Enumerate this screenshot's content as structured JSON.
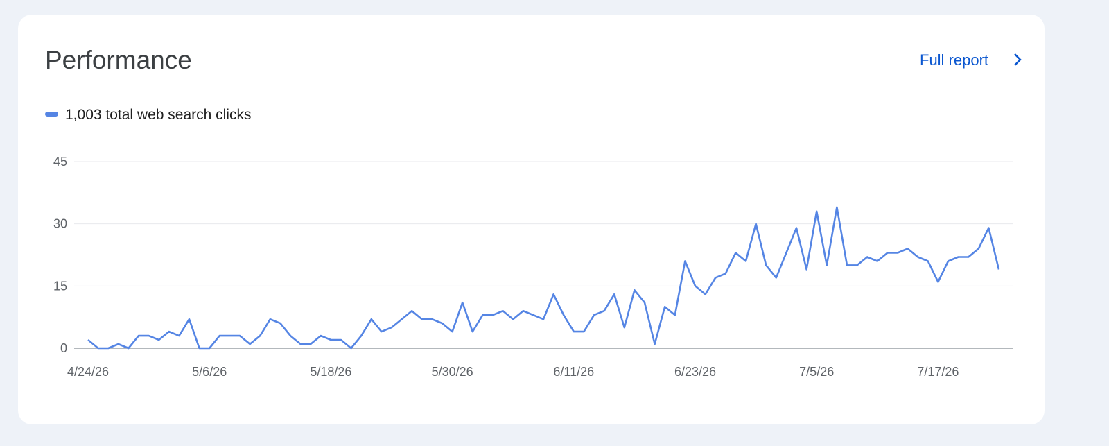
{
  "header": {
    "title": "Performance",
    "link": "Full report"
  },
  "chart_data": {
    "type": "line",
    "categories": [
      "4/24/26",
      null,
      null,
      null,
      null,
      null,
      null,
      null,
      null,
      null,
      null,
      null,
      "5/6/26",
      null,
      null,
      null,
      null,
      null,
      null,
      null,
      null,
      null,
      null,
      null,
      "5/18/26",
      null,
      null,
      null,
      null,
      null,
      null,
      null,
      null,
      null,
      null,
      null,
      "5/30/26",
      null,
      null,
      null,
      null,
      null,
      null,
      null,
      null,
      null,
      null,
      null,
      "6/11/26",
      null,
      null,
      null,
      null,
      null,
      null,
      null,
      null,
      null,
      null,
      null,
      "6/23/26",
      null,
      null,
      null,
      null,
      null,
      null,
      null,
      null,
      null,
      null,
      null,
      "7/5/26",
      null,
      null,
      null,
      null,
      null,
      null,
      null,
      null,
      null,
      null,
      null,
      "7/17/26",
      null,
      null,
      null,
      null,
      null,
      null
    ],
    "series": [
      {
        "name": "1,003 total web search clicks",
        "color": "#5585e4",
        "values": [
          2,
          0,
          0,
          1,
          0,
          3,
          3,
          2,
          4,
          3,
          7,
          0,
          0,
          3,
          3,
          3,
          1,
          3,
          7,
          6,
          3,
          1,
          1,
          3,
          2,
          2,
          0,
          3,
          7,
          4,
          5,
          7,
          9,
          7,
          7,
          6,
          4,
          11,
          4,
          8,
          8,
          9,
          7,
          9,
          8,
          7,
          13,
          8,
          4,
          4,
          8,
          9,
          13,
          5,
          14,
          11,
          1,
          10,
          8,
          21,
          15,
          13,
          17,
          18,
          23,
          21,
          30,
          20,
          17,
          23,
          29,
          19,
          33,
          20,
          34,
          20,
          20,
          22,
          21,
          23,
          23,
          24,
          22,
          21,
          16,
          21,
          22,
          22,
          24,
          29,
          19
        ]
      }
    ],
    "ylim": [
      0,
      45
    ],
    "yticks": [
      0,
      15,
      30,
      45
    ],
    "grid": true
  }
}
